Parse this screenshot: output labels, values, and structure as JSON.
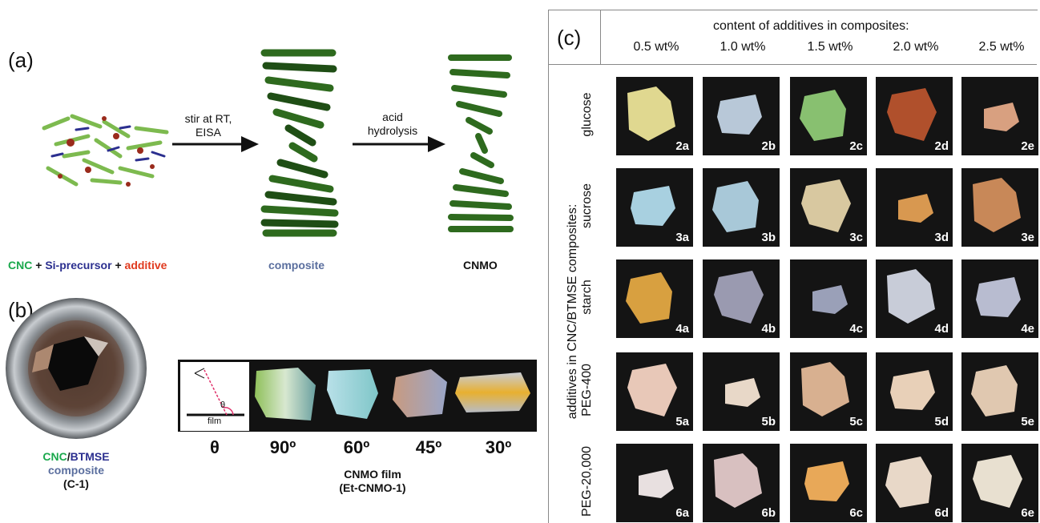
{
  "panel_a": {
    "label": "(a)",
    "arrow1": {
      "line1": "stir at RT,",
      "line2": "EISA"
    },
    "arrow2": {
      "line1": "acid",
      "line2": "hydrolysis"
    },
    "legend": {
      "cnc": "CNC",
      "plus1": " + ",
      "si": "Si-precursor",
      "plus2": " + ",
      "additive": "additive"
    },
    "composite_label": "composite",
    "cnmo_label": "CNMO",
    "colors": {
      "cnc": "#1aa84c",
      "si": "#2b2f8f",
      "additive": "#e03a1e",
      "composite": "#5a6e9e"
    }
  },
  "panel_b": {
    "label": "(b)",
    "caption": {
      "cnc": "CNC",
      "slash": "/",
      "btmse": "BTMSE",
      "line2": "composite",
      "line3": "(C-1)"
    },
    "inset": {
      "theta": "θ",
      "film": "film"
    },
    "angles": [
      "θ",
      "90º",
      "60º",
      "45º",
      "30º"
    ],
    "film_caption": {
      "line1": "CNMO film",
      "line2": "(Et-CNMO-1)"
    }
  },
  "panel_c": {
    "label": "(c)",
    "header": "content of additives in composites:",
    "columns": [
      "0.5 wt%",
      "1.0 wt%",
      "1.5 wt%",
      "2.0 wt%",
      "2.5 wt%"
    ],
    "side_label": "additives in CNC/BTMSE composites:",
    "rows": [
      {
        "name": "glucose",
        "samples": [
          "2a",
          "2b",
          "2c",
          "2d",
          "2e"
        ]
      },
      {
        "name": "sucrose",
        "samples": [
          "3a",
          "3b",
          "3c",
          "3d",
          "3e"
        ]
      },
      {
        "name": "starch",
        "samples": [
          "4a",
          "4b",
          "4c",
          "4d",
          "4e"
        ]
      },
      {
        "name": "PEG-400",
        "samples": [
          "5a",
          "5b",
          "5c",
          "5d",
          "5e"
        ]
      },
      {
        "name": "PEG-20,000",
        "samples": [
          "6a",
          "6b",
          "6c",
          "6d",
          "6e"
        ]
      }
    ]
  }
}
